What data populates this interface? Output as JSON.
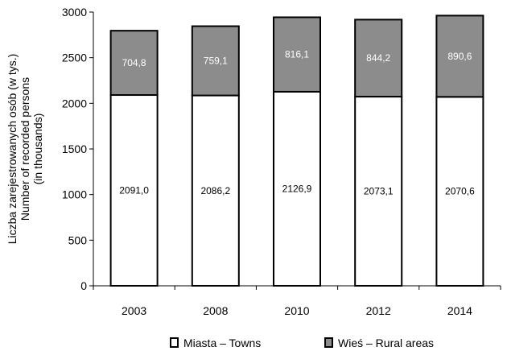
{
  "chart_data": {
    "type": "bar",
    "stacked": true,
    "categories": [
      "2003",
      "2008",
      "2010",
      "2012",
      "2014"
    ],
    "series": [
      {
        "name": "Miasta – Towns",
        "values": [
          2091.0,
          2086.2,
          2126.9,
          2073.1,
          2070.6
        ],
        "labels": [
          "2091,0",
          "2086,2",
          "2126,9",
          "2073,1",
          "2070,6"
        ],
        "color": "#ffffff"
      },
      {
        "name": "Wieś – Rural areas",
        "values": [
          704.8,
          759.1,
          816.1,
          844.2,
          890.6
        ],
        "labels": [
          "704,8",
          "759,1",
          "816,1",
          "844,2",
          "890,6"
        ],
        "color": "#8c8c8c"
      }
    ],
    "ylabel_lines": [
      "Liczba zarejestrowanych osób (w tys.)",
      "Number of recorded persons",
      "(in thousands)"
    ],
    "ylim": [
      0,
      3000
    ],
    "yticks": [
      0,
      500,
      1000,
      1500,
      2000,
      2500,
      3000
    ],
    "grid": false,
    "legend_position": "bottom"
  }
}
